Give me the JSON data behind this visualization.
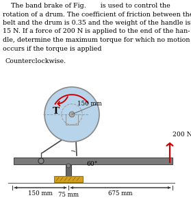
{
  "bg_color": "#ffffff",
  "drum_color": "#b8d4ea",
  "drum_edge": "#888888",
  "brake_color": "#d4a020",
  "arrow_color": "#cc0000",
  "text_lines": [
    "    The band brake of Fig.       is used to control the",
    "rotation of a drum. The coefficient of friction between the",
    "belt and the drum is 0.35 and the weight of the handle is",
    "15 N. If a force of 200 N is applied to the end of the han-",
    "dle, determine the maximum torque for which no motion",
    "occurs if the torque is applied"
  ],
  "subheading": "Counterclockwise.",
  "label_150mm_top": "150 mm",
  "label_T": "T",
  "label_200N": "200 N",
  "label_60deg": "60°",
  "label_150mm_bot": "150 mm",
  "label_675mm": "675 mm",
  "label_75mm": "75 mm",
  "text_fontsize": 6.8,
  "small_fontsize": 6.2,
  "handle_gray": "#7a7a7a",
  "bracket_gray": "#666666",
  "dark_gray": "#444444"
}
